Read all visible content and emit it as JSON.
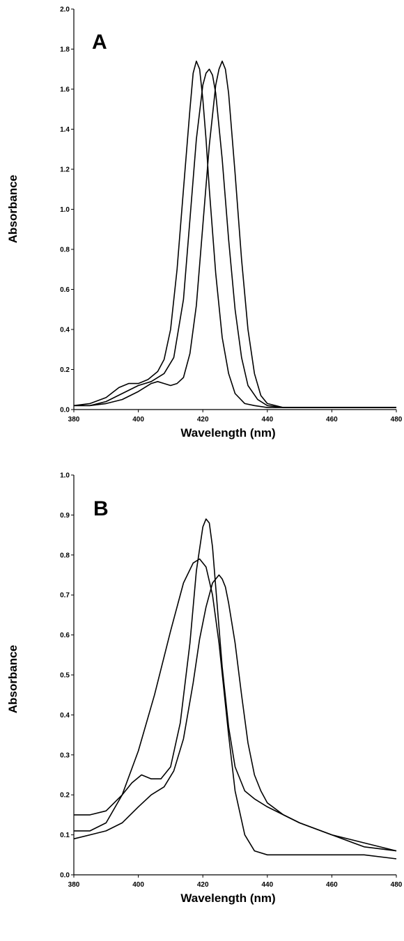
{
  "chart_data": [
    {
      "type": "line",
      "panel_label": "A",
      "xlabel": "Wavelength (nm)",
      "ylabel": "Absorbance",
      "xlim": [
        380,
        480
      ],
      "ylim": [
        0.0,
        2.0
      ],
      "xticks": [
        "380",
        "400",
        "420",
        "440",
        "460",
        "480"
      ],
      "yticks": [
        "0.0",
        "0.2",
        "0.4",
        "0.6",
        "0.8",
        "1.0",
        "1.2",
        "1.4",
        "1.6",
        "1.8",
        "2.0"
      ],
      "grid": false,
      "series": [
        {
          "x": [
            380,
            385,
            390,
            394,
            397,
            400,
            403,
            406,
            408,
            410,
            412,
            414,
            416,
            417,
            418,
            419,
            420,
            421,
            422,
            424,
            426,
            428,
            430,
            433,
            436,
            440,
            445,
            450,
            460,
            470,
            480
          ],
          "y": [
            0.02,
            0.03,
            0.06,
            0.11,
            0.13,
            0.13,
            0.15,
            0.19,
            0.25,
            0.4,
            0.7,
            1.1,
            1.5,
            1.68,
            1.74,
            1.7,
            1.55,
            1.35,
            1.1,
            0.68,
            0.36,
            0.18,
            0.08,
            0.03,
            0.02,
            0.01,
            0.01,
            0.01,
            0.01,
            0.01,
            0.01
          ]
        },
        {
          "x": [
            380,
            385,
            390,
            395,
            400,
            404,
            408,
            411,
            414,
            416,
            418,
            420,
            421,
            422,
            423,
            424,
            426,
            428,
            430,
            432,
            434,
            437,
            440,
            445,
            450,
            460,
            470,
            480
          ],
          "y": [
            0.02,
            0.02,
            0.04,
            0.08,
            0.12,
            0.14,
            0.18,
            0.26,
            0.55,
            0.95,
            1.35,
            1.62,
            1.68,
            1.7,
            1.67,
            1.58,
            1.25,
            0.85,
            0.5,
            0.26,
            0.12,
            0.05,
            0.02,
            0.01,
            0.01,
            0.01,
            0.01,
            0.01
          ]
        },
        {
          "x": [
            380,
            385,
            390,
            395,
            400,
            404,
            406,
            408,
            410,
            412,
            414,
            416,
            418,
            420,
            422,
            424,
            425,
            426,
            427,
            428,
            430,
            432,
            434,
            436,
            438,
            440,
            445,
            450,
            460,
            470,
            480
          ],
          "y": [
            0.02,
            0.02,
            0.03,
            0.05,
            0.09,
            0.13,
            0.14,
            0.13,
            0.12,
            0.13,
            0.16,
            0.28,
            0.52,
            0.92,
            1.32,
            1.62,
            1.7,
            1.74,
            1.7,
            1.58,
            1.18,
            0.75,
            0.4,
            0.18,
            0.07,
            0.03,
            0.01,
            0.01,
            0.01,
            0.01,
            0.01
          ]
        }
      ]
    },
    {
      "type": "line",
      "panel_label": "B",
      "xlabel": "Wavelength (nm)",
      "ylabel": "Absorbance",
      "xlim": [
        380,
        480
      ],
      "ylim": [
        0.0,
        1.0
      ],
      "xticks": [
        "380",
        "400",
        "420",
        "440",
        "460",
        "480"
      ],
      "yticks": [
        "0.0",
        "0.1",
        "0.2",
        "0.3",
        "0.4",
        "0.5",
        "0.6",
        "0.7",
        "0.8",
        "0.9",
        "1.0"
      ],
      "grid": false,
      "series": [
        {
          "x": [
            380,
            385,
            390,
            395,
            400,
            405,
            410,
            414,
            417,
            419,
            421,
            423,
            425,
            428,
            430,
            433,
            436,
            440,
            445,
            450,
            460,
            470,
            480
          ],
          "y": [
            0.11,
            0.11,
            0.13,
            0.2,
            0.31,
            0.45,
            0.61,
            0.73,
            0.78,
            0.79,
            0.77,
            0.7,
            0.58,
            0.35,
            0.21,
            0.1,
            0.06,
            0.05,
            0.05,
            0.05,
            0.05,
            0.05,
            0.04
          ]
        },
        {
          "x": [
            380,
            385,
            390,
            395,
            398,
            401,
            404,
            407,
            410,
            413,
            416,
            418,
            420,
            421,
            422,
            423,
            424,
            426,
            428,
            430,
            433,
            436,
            440,
            445,
            450,
            460,
            470,
            480
          ],
          "y": [
            0.15,
            0.15,
            0.16,
            0.2,
            0.23,
            0.25,
            0.24,
            0.24,
            0.27,
            0.38,
            0.58,
            0.76,
            0.87,
            0.89,
            0.88,
            0.82,
            0.72,
            0.52,
            0.37,
            0.27,
            0.21,
            0.19,
            0.17,
            0.15,
            0.13,
            0.1,
            0.07,
            0.06
          ]
        },
        {
          "x": [
            380,
            385,
            390,
            395,
            400,
            404,
            408,
            411,
            414,
            417,
            419,
            421,
            423,
            425,
            426,
            427,
            428,
            430,
            432,
            434,
            436,
            438,
            440,
            445,
            450,
            460,
            470,
            480
          ],
          "y": [
            0.09,
            0.1,
            0.11,
            0.13,
            0.17,
            0.2,
            0.22,
            0.26,
            0.34,
            0.48,
            0.59,
            0.67,
            0.73,
            0.75,
            0.74,
            0.72,
            0.68,
            0.58,
            0.45,
            0.33,
            0.25,
            0.21,
            0.18,
            0.15,
            0.13,
            0.1,
            0.08,
            0.06
          ]
        }
      ]
    }
  ]
}
